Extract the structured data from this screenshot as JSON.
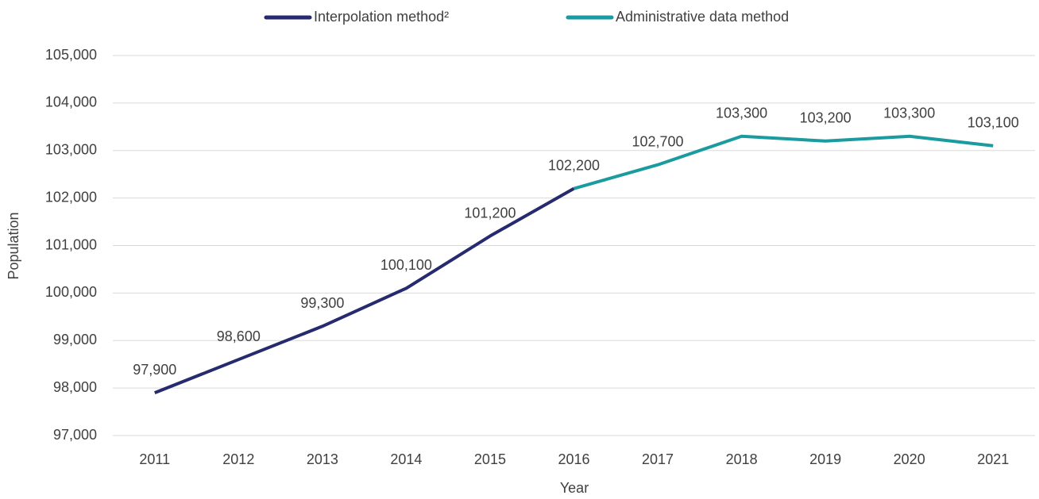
{
  "chart_data": {
    "type": "line",
    "x_label": "Year",
    "y_label": "Population",
    "categories": [
      "2011",
      "2012",
      "2013",
      "2014",
      "2015",
      "2016",
      "2017",
      "2018",
      "2019",
      "2020",
      "2021"
    ],
    "series": [
      {
        "name": "Interpolation method²",
        "color": "#262a6e",
        "values": [
          97900,
          98600,
          99300,
          100100,
          101200,
          102200,
          null,
          null,
          null,
          null,
          null
        ],
        "value_labels": [
          "97,900",
          "98,600",
          "99,300",
          "100,100",
          "101,200",
          "102,200",
          null,
          null,
          null,
          null,
          null
        ]
      },
      {
        "name": "Administrative data method",
        "color": "#1a9ba0",
        "values": [
          null,
          null,
          null,
          null,
          null,
          102200,
          102700,
          103300,
          103200,
          103300,
          103100
        ],
        "value_labels": [
          null,
          null,
          null,
          null,
          null,
          null,
          "102,700",
          "103,300",
          "103,200",
          "103,300",
          "103,100"
        ]
      }
    ],
    "ylim": [
      97000,
      105000
    ],
    "yticks": [
      {
        "value": 97000,
        "label": "97,000"
      },
      {
        "value": 98000,
        "label": "98,000"
      },
      {
        "value": 99000,
        "label": "99,000"
      },
      {
        "value": 100000,
        "label": "100,000"
      },
      {
        "value": 101000,
        "label": "101,000"
      },
      {
        "value": 102000,
        "label": "102,000"
      },
      {
        "value": 103000,
        "label": "103,000"
      },
      {
        "value": 104000,
        "label": "104,000"
      },
      {
        "value": 105000,
        "label": "105,000"
      }
    ],
    "grid": true,
    "legend": "top"
  }
}
